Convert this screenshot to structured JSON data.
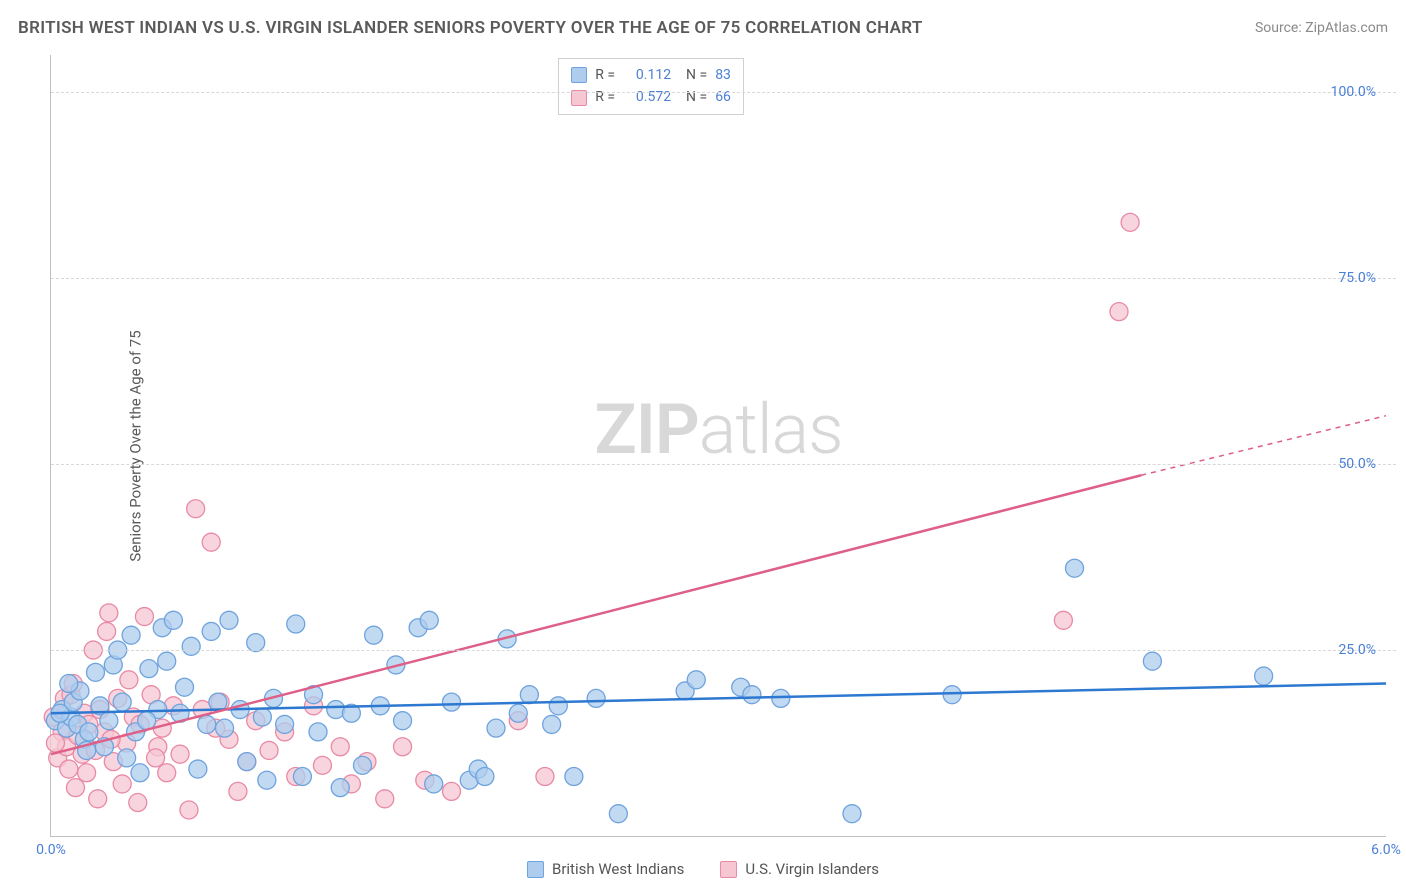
{
  "title": "BRITISH WEST INDIAN VS U.S. VIRGIN ISLANDER SENIORS POVERTY OVER THE AGE OF 75 CORRELATION CHART",
  "source": "Source: ZipAtlas.com",
  "watermark": {
    "a": "ZIP",
    "b": "atlas"
  },
  "ylabel": "Seniors Poverty Over the Age of 75",
  "chart": {
    "type": "scatter",
    "xlim": [
      0.0,
      6.0
    ],
    "ylim": [
      0.0,
      105.0
    ],
    "xticks": [
      {
        "v": 0.0,
        "label": "0.0%"
      },
      {
        "v": 6.0,
        "label": "6.0%"
      }
    ],
    "yticks": [
      {
        "v": 25.0,
        "label": "25.0%"
      },
      {
        "v": 50.0,
        "label": "50.0%"
      },
      {
        "v": 75.0,
        "label": "75.0%"
      },
      {
        "v": 100.0,
        "label": "100.0%"
      }
    ],
    "series": [
      {
        "name": "British West Indians",
        "color_fill": "#aeccee",
        "color_stroke": "#6fa3dd",
        "line_color": "#2d78d0",
        "marker_r": 9,
        "R": "0.112",
        "N": "83",
        "trend": {
          "x0": 0.0,
          "y0": 16.5,
          "x1": 6.0,
          "y1": 20.5,
          "dash_after": 6.0
        },
        "points": [
          [
            0.02,
            15.5
          ],
          [
            0.05,
            17.0
          ],
          [
            0.07,
            14.5
          ],
          [
            0.09,
            16.0
          ],
          [
            0.1,
            18.0
          ],
          [
            0.12,
            15.0
          ],
          [
            0.13,
            19.5
          ],
          [
            0.15,
            13.0
          ],
          [
            0.16,
            11.5
          ],
          [
            0.17,
            14.0
          ],
          [
            0.2,
            22.0
          ],
          [
            0.22,
            17.5
          ],
          [
            0.24,
            12.0
          ],
          [
            0.26,
            15.5
          ],
          [
            0.28,
            23.0
          ],
          [
            0.3,
            25.0
          ],
          [
            0.32,
            18.0
          ],
          [
            0.34,
            10.5
          ],
          [
            0.36,
            27.0
          ],
          [
            0.38,
            14.0
          ],
          [
            0.4,
            8.5
          ],
          [
            0.44,
            22.5
          ],
          [
            0.48,
            17.0
          ],
          [
            0.5,
            28.0
          ],
          [
            0.55,
            29.0
          ],
          [
            0.58,
            16.5
          ],
          [
            0.6,
            20.0
          ],
          [
            0.63,
            25.5
          ],
          [
            0.66,
            9.0
          ],
          [
            0.7,
            15.0
          ],
          [
            0.72,
            27.5
          ],
          [
            0.75,
            18.0
          ],
          [
            0.78,
            14.5
          ],
          [
            0.8,
            29.0
          ],
          [
            0.85,
            17.0
          ],
          [
            0.88,
            10.0
          ],
          [
            0.92,
            26.0
          ],
          [
            0.95,
            16.0
          ],
          [
            0.97,
            7.5
          ],
          [
            1.0,
            18.5
          ],
          [
            1.05,
            15.0
          ],
          [
            1.1,
            28.5
          ],
          [
            1.13,
            8.0
          ],
          [
            1.18,
            19.0
          ],
          [
            1.2,
            14.0
          ],
          [
            1.28,
            17.0
          ],
          [
            1.3,
            6.5
          ],
          [
            1.35,
            16.5
          ],
          [
            1.45,
            27.0
          ],
          [
            1.48,
            17.5
          ],
          [
            1.55,
            23.0
          ],
          [
            1.58,
            15.5
          ],
          [
            1.65,
            28.0
          ],
          [
            1.72,
            7.0
          ],
          [
            1.8,
            18.0
          ],
          [
            1.88,
            7.5
          ],
          [
            1.92,
            9.0
          ],
          [
            1.95,
            8.0
          ],
          [
            2.05,
            26.5
          ],
          [
            2.1,
            16.5
          ],
          [
            2.15,
            19.0
          ],
          [
            2.25,
            15.0
          ],
          [
            2.28,
            17.5
          ],
          [
            2.45,
            18.5
          ],
          [
            2.55,
            3.0
          ],
          [
            2.85,
            19.5
          ],
          [
            2.9,
            21.0
          ],
          [
            3.1,
            20.0
          ],
          [
            3.15,
            19.0
          ],
          [
            3.28,
            18.5
          ],
          [
            3.6,
            3.0
          ],
          [
            4.05,
            19.0
          ],
          [
            4.6,
            36.0
          ],
          [
            4.95,
            23.5
          ],
          [
            5.45,
            21.5
          ],
          [
            2.0,
            14.5
          ],
          [
            2.35,
            8.0
          ],
          [
            1.7,
            29.0
          ],
          [
            1.4,
            9.5
          ],
          [
            0.43,
            15.5
          ],
          [
            0.52,
            23.5
          ],
          [
            0.08,
            20.5
          ],
          [
            0.04,
            16.5
          ]
        ]
      },
      {
        "name": "U.S. Virgin Islanders",
        "color_fill": "#f6c7d3",
        "color_stroke": "#e88aa5",
        "line_color": "#de5f87",
        "marker_r": 9,
        "R": "0.572",
        "N": "66",
        "trend": {
          "x0": 0.0,
          "y0": 11.0,
          "x1": 4.9,
          "y1": 48.5,
          "dash_after": 4.9,
          "x2": 6.0,
          "y2": 56.5
        },
        "points": [
          [
            0.01,
            16.0
          ],
          [
            0.03,
            10.5
          ],
          [
            0.05,
            14.0
          ],
          [
            0.06,
            18.5
          ],
          [
            0.07,
            12.0
          ],
          [
            0.08,
            9.0
          ],
          [
            0.09,
            19.0
          ],
          [
            0.1,
            20.5
          ],
          [
            0.11,
            6.5
          ],
          [
            0.12,
            13.5
          ],
          [
            0.14,
            11.0
          ],
          [
            0.15,
            16.5
          ],
          [
            0.16,
            8.5
          ],
          [
            0.17,
            15.0
          ],
          [
            0.19,
            25.0
          ],
          [
            0.2,
            11.5
          ],
          [
            0.22,
            17.0
          ],
          [
            0.24,
            14.0
          ],
          [
            0.25,
            27.5
          ],
          [
            0.26,
            30.0
          ],
          [
            0.28,
            10.0
          ],
          [
            0.3,
            18.5
          ],
          [
            0.32,
            7.0
          ],
          [
            0.34,
            12.5
          ],
          [
            0.37,
            16.0
          ],
          [
            0.39,
            4.5
          ],
          [
            0.4,
            15.0
          ],
          [
            0.42,
            29.5
          ],
          [
            0.45,
            19.0
          ],
          [
            0.48,
            12.0
          ],
          [
            0.5,
            14.5
          ],
          [
            0.52,
            8.5
          ],
          [
            0.55,
            17.5
          ],
          [
            0.58,
            11.0
          ],
          [
            0.62,
            3.5
          ],
          [
            0.65,
            44.0
          ],
          [
            0.72,
            39.5
          ],
          [
            0.76,
            18.0
          ],
          [
            0.8,
            13.0
          ],
          [
            0.84,
            6.0
          ],
          [
            0.88,
            10.0
          ],
          [
            0.92,
            15.5
          ],
          [
            0.98,
            11.5
          ],
          [
            1.05,
            14.0
          ],
          [
            1.1,
            8.0
          ],
          [
            1.18,
            17.5
          ],
          [
            1.22,
            9.5
          ],
          [
            1.3,
            12.0
          ],
          [
            1.35,
            7.0
          ],
          [
            1.42,
            10.0
          ],
          [
            1.5,
            5.0
          ],
          [
            1.58,
            12.0
          ],
          [
            1.68,
            7.5
          ],
          [
            1.8,
            6.0
          ],
          [
            2.1,
            15.5
          ],
          [
            2.22,
            8.0
          ],
          [
            4.55,
            29.0
          ],
          [
            4.8,
            70.5
          ],
          [
            4.85,
            82.5
          ],
          [
            0.35,
            21.0
          ],
          [
            0.47,
            10.5
          ],
          [
            0.68,
            17.0
          ],
          [
            0.74,
            14.5
          ],
          [
            0.27,
            13.0
          ],
          [
            0.21,
            5.0
          ],
          [
            0.02,
            12.5
          ]
        ]
      }
    ]
  }
}
